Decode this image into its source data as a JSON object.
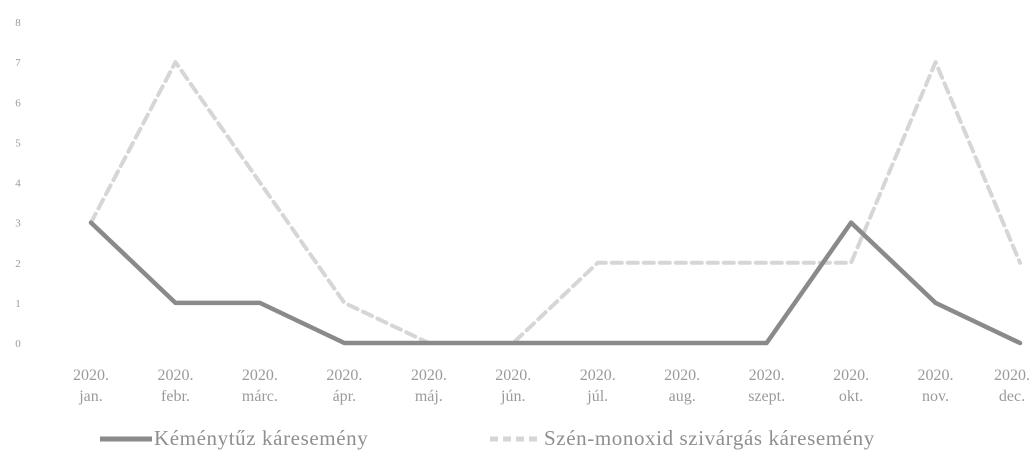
{
  "chart_data": {
    "type": "line",
    "title": "",
    "xlabel": "",
    "ylabel": "",
    "ylim": [
      0,
      8
    ],
    "yticks": [
      "0",
      "1",
      "2",
      "3",
      "4",
      "5",
      "6",
      "7",
      "8"
    ],
    "grid": false,
    "legend_position": "bottom",
    "categories": [
      [
        "2020.",
        "jan."
      ],
      [
        "2020.",
        "febr."
      ],
      [
        "2020.",
        "márc."
      ],
      [
        "2020.",
        "ápr."
      ],
      [
        "2020.",
        "máj."
      ],
      [
        "2020.",
        "jún."
      ],
      [
        "2020.",
        "júl."
      ],
      [
        "2020.",
        "aug."
      ],
      [
        "2020.",
        "szept."
      ],
      [
        "2020.",
        "okt."
      ],
      [
        "2020.",
        "nov."
      ],
      [
        "2020.",
        "dec."
      ]
    ],
    "series": [
      {
        "name": "Kéménytűz káresemény",
        "color": "#8a8a8a",
        "dash": "solid",
        "values": [
          3,
          1,
          1,
          0,
          0,
          0,
          0,
          0,
          0,
          3,
          1,
          0
        ]
      },
      {
        "name": "Szén-monoxid szivárgás káresemény",
        "color": "#d6d6d6",
        "dash": "dashed",
        "values": [
          3,
          7,
          4,
          1,
          0,
          0,
          2,
          2,
          2,
          2,
          7,
          2
        ]
      }
    ]
  }
}
